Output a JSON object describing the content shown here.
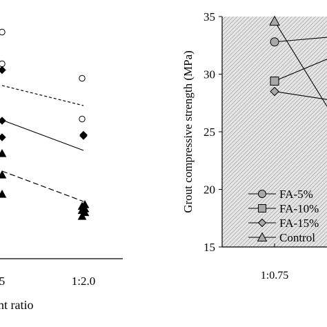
{
  "chart_data": [
    {
      "type": "scatter",
      "title": "",
      "xlabel": "nt ratio",
      "ylabel": "",
      "categories": [
        "5",
        "1:2.0"
      ],
      "series": [
        {
          "marker": "open-circle",
          "x": [
            "5",
            "5",
            "1:2.0",
            "1:2.0"
          ],
          "y": [
            46.5,
            92.5,
            113.5,
            172.5
          ]
        },
        {
          "marker": "filled-diamond",
          "x": [
            "5",
            "5",
            "5",
            "1:2.0",
            "1:2.0"
          ],
          "y": [
            101.5,
            175,
            199,
            195.5,
            197
          ]
        },
        {
          "marker": "filled-triangle",
          "x": [
            "5",
            "5",
            "5",
            "1:2.0",
            "1:2.0",
            "1:2.0",
            "1:2.0",
            "1:2.0",
            "1:2.0"
          ],
          "y": [
            222.5,
            253.5,
            281.5,
            296.5,
            299,
            302.5,
            305,
            308,
            313.5
          ]
        }
      ],
      "trendlines": [
        {
          "style": "short-dashed",
          "from": [
            "5",
            124
          ],
          "to": [
            "1:2.0",
            153
          ]
        },
        {
          "style": "solid",
          "from": [
            "5",
            174
          ],
          "to": [
            "1:2.0",
            218
          ]
        },
        {
          "style": "long-dashed",
          "from": [
            "5",
            248
          ],
          "to": [
            "1:2.0",
            292
          ]
        }
      ],
      "note": "y values are vertical readings from the plot; left panel is cropped and shows no y-axis ticks"
    },
    {
      "type": "line",
      "title": "",
      "xlabel": "",
      "ylabel": "Grout compressive strength (MPa)",
      "ylim": [
        15,
        35
      ],
      "y_ticks": [
        "15",
        "20",
        "25",
        "30",
        "35"
      ],
      "x_ticks": [
        "1:0.75"
      ],
      "background": "hatched",
      "legend_position": "lower-left",
      "legend": [
        {
          "label": "FA-5%",
          "marker": "circle"
        },
        {
          "label": "FA-10%",
          "marker": "square"
        },
        {
          "label": "FA-15%",
          "marker": "diamond"
        },
        {
          "label": "Control",
          "marker": "triangle"
        }
      ],
      "series": [
        {
          "legend_index": 0,
          "x": [
            "1:0.75"
          ],
          "y": [
            32.8
          ]
        },
        {
          "legend_index": 1,
          "x": [
            "1:0.75"
          ],
          "y": [
            29.4
          ]
        },
        {
          "legend_index": 2,
          "x": [
            "1:0.75"
          ],
          "y": [
            28.5
          ]
        },
        {
          "legend_index": 3,
          "x": [
            "1:0.75"
          ],
          "y": [
            34.6
          ]
        }
      ],
      "line_end_values": [
        33.2,
        31.3,
        27.8,
        27.2
      ]
    }
  ]
}
